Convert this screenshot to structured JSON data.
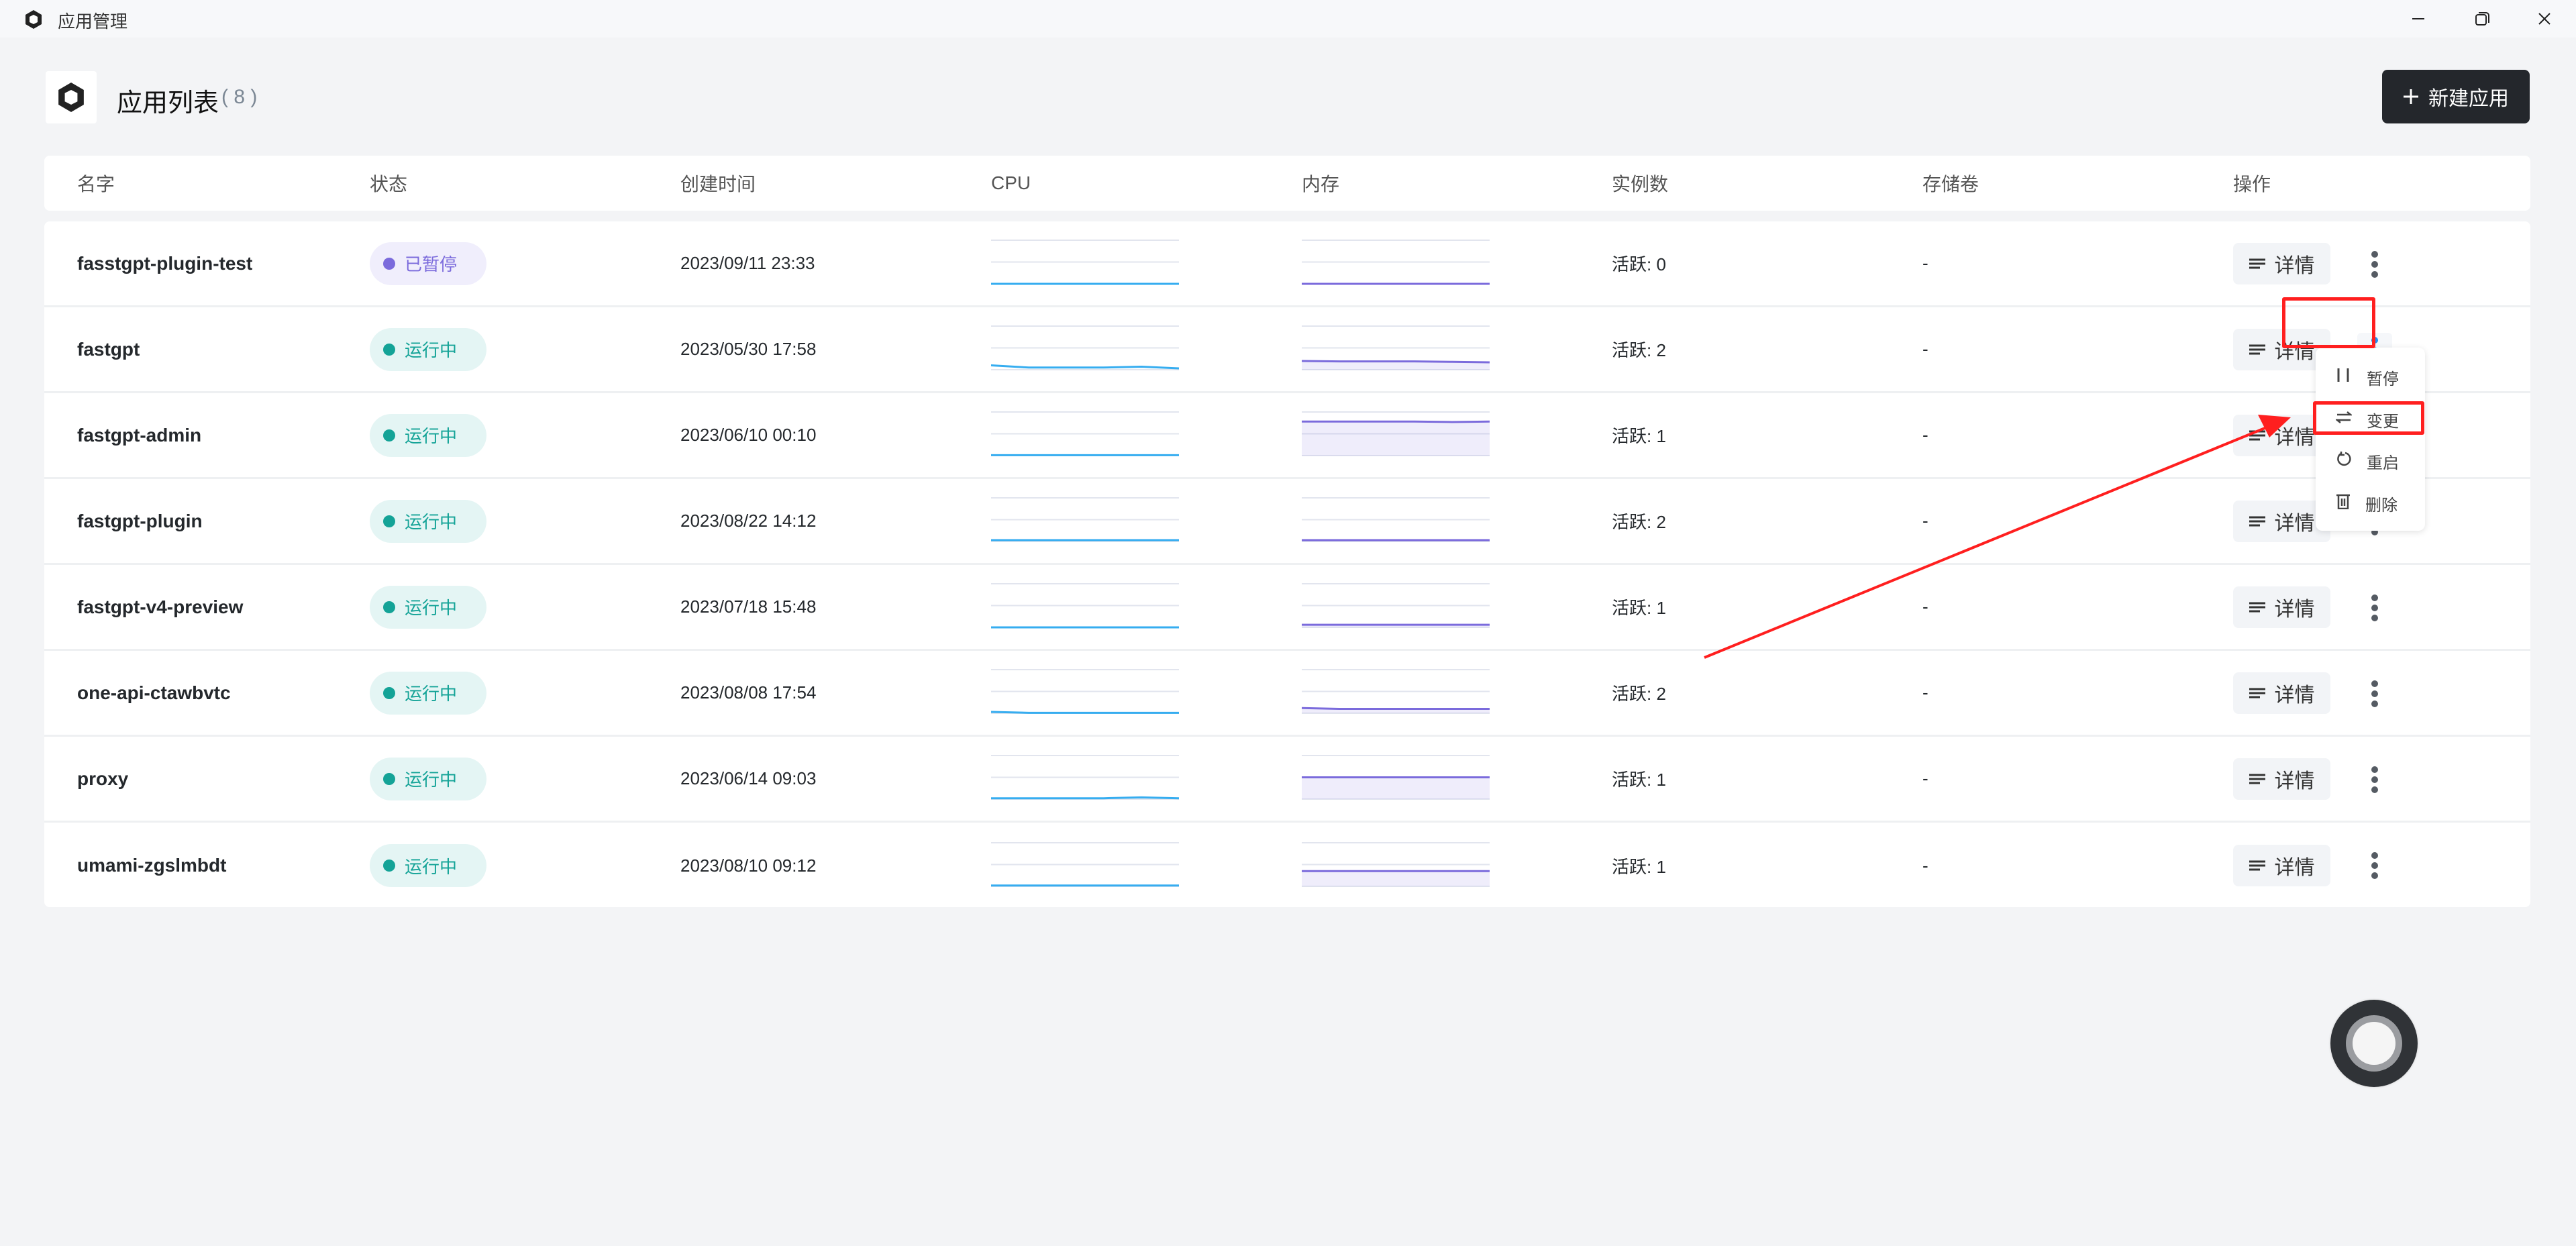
{
  "window": {
    "title": "应用管理",
    "icons": {
      "logo": "hexagon-logo-icon",
      "minimize": "minimize-icon",
      "restore": "restore-icon",
      "close": "close-icon"
    }
  },
  "header": {
    "title": "应用列表",
    "count": "( 8 )",
    "new_button": "新建应用"
  },
  "table": {
    "columns": [
      "名字",
      "状态",
      "创建时间",
      "CPU",
      "内存",
      "实例数",
      "存储卷",
      "操作"
    ],
    "detail_label": "详情",
    "rows": [
      {
        "name": "fasstgpt-plugin-test",
        "status": "已暂停",
        "status_type": "paused",
        "created": "2023/09/11 23:33",
        "cpu": [
          0,
          0,
          0,
          0,
          0,
          0
        ],
        "memory": [
          0,
          0,
          0,
          0,
          0,
          0
        ],
        "memory_fill": false,
        "instances": "活跃: 0",
        "volume": "-"
      },
      {
        "name": "fastgpt",
        "status": "运行中",
        "status_type": "running",
        "created": "2023/05/30 17:58",
        "cpu": [
          10,
          5,
          5,
          5,
          7,
          3
        ],
        "memory": [
          20,
          19,
          19,
          19,
          18,
          17
        ],
        "memory_fill": true,
        "instances": "活跃: 2",
        "volume": "-"
      },
      {
        "name": "fastgpt-admin",
        "status": "运行中",
        "status_type": "running",
        "created": "2023/06/10 00:10",
        "cpu": [
          1,
          1,
          1,
          1,
          1,
          1
        ],
        "memory": [
          78,
          78,
          78,
          78,
          77,
          78
        ],
        "memory_fill": true,
        "instances": "活跃: 1",
        "volume": "-"
      },
      {
        "name": "fastgpt-plugin",
        "status": "运行中",
        "status_type": "running",
        "created": "2023/08/22 14:12",
        "cpu": [
          3,
          3,
          3,
          3,
          3,
          3
        ],
        "memory": [
          3,
          3,
          3,
          3,
          3,
          3
        ],
        "memory_fill": true,
        "instances": "活跃: 2",
        "volume": "-"
      },
      {
        "name": "fastgpt-v4-preview",
        "status": "运行中",
        "status_type": "running",
        "created": "2023/07/18 15:48",
        "cpu": [
          0,
          0,
          0,
          0,
          0,
          0
        ],
        "memory": [
          6,
          6,
          6,
          6,
          6,
          6
        ],
        "memory_fill": true,
        "instances": "活跃: 1",
        "volume": "-"
      },
      {
        "name": "one-api-ctawbvtc",
        "status": "运行中",
        "status_type": "running",
        "created": "2023/08/08 17:54",
        "cpu": [
          3,
          1,
          1,
          1,
          1,
          1
        ],
        "memory": [
          12,
          10,
          10,
          10,
          10,
          10
        ],
        "memory_fill": true,
        "instances": "活跃: 2",
        "volume": "-"
      },
      {
        "name": "proxy",
        "status": "运行中",
        "status_type": "running",
        "created": "2023/06/14 09:03",
        "cpu": [
          2,
          2,
          2,
          2,
          4,
          2
        ],
        "memory": [
          50,
          50,
          50,
          50,
          50,
          50
        ],
        "memory_fill": true,
        "instances": "活跃: 1",
        "volume": "-"
      },
      {
        "name": "umami-zgslmbdt",
        "status": "运行中",
        "status_type": "running",
        "created": "2023/08/10 09:12",
        "cpu": [
          2,
          2,
          2,
          2,
          2,
          2
        ],
        "memory": [
          35,
          35,
          35,
          35,
          35,
          35
        ],
        "memory_fill": true,
        "instances": "活跃: 1",
        "volume": "-"
      }
    ]
  },
  "menu": {
    "items": [
      {
        "label": "暂停",
        "icon": "pause-icon"
      },
      {
        "label": "变更",
        "icon": "swap-icon"
      },
      {
        "label": "重启",
        "icon": "restart-icon"
      },
      {
        "label": "删除",
        "icon": "trash-icon"
      }
    ]
  },
  "colors": {
    "cpu": "#36adf0",
    "memory": "#7b6bdc",
    "running_bg": "#e4f5f4",
    "running_fg": "#14a397",
    "paused_bg": "#f0eefc",
    "paused_fg": "#7b6bdc",
    "annotation": "#ff1f1f",
    "primary_button": "#24272c"
  }
}
